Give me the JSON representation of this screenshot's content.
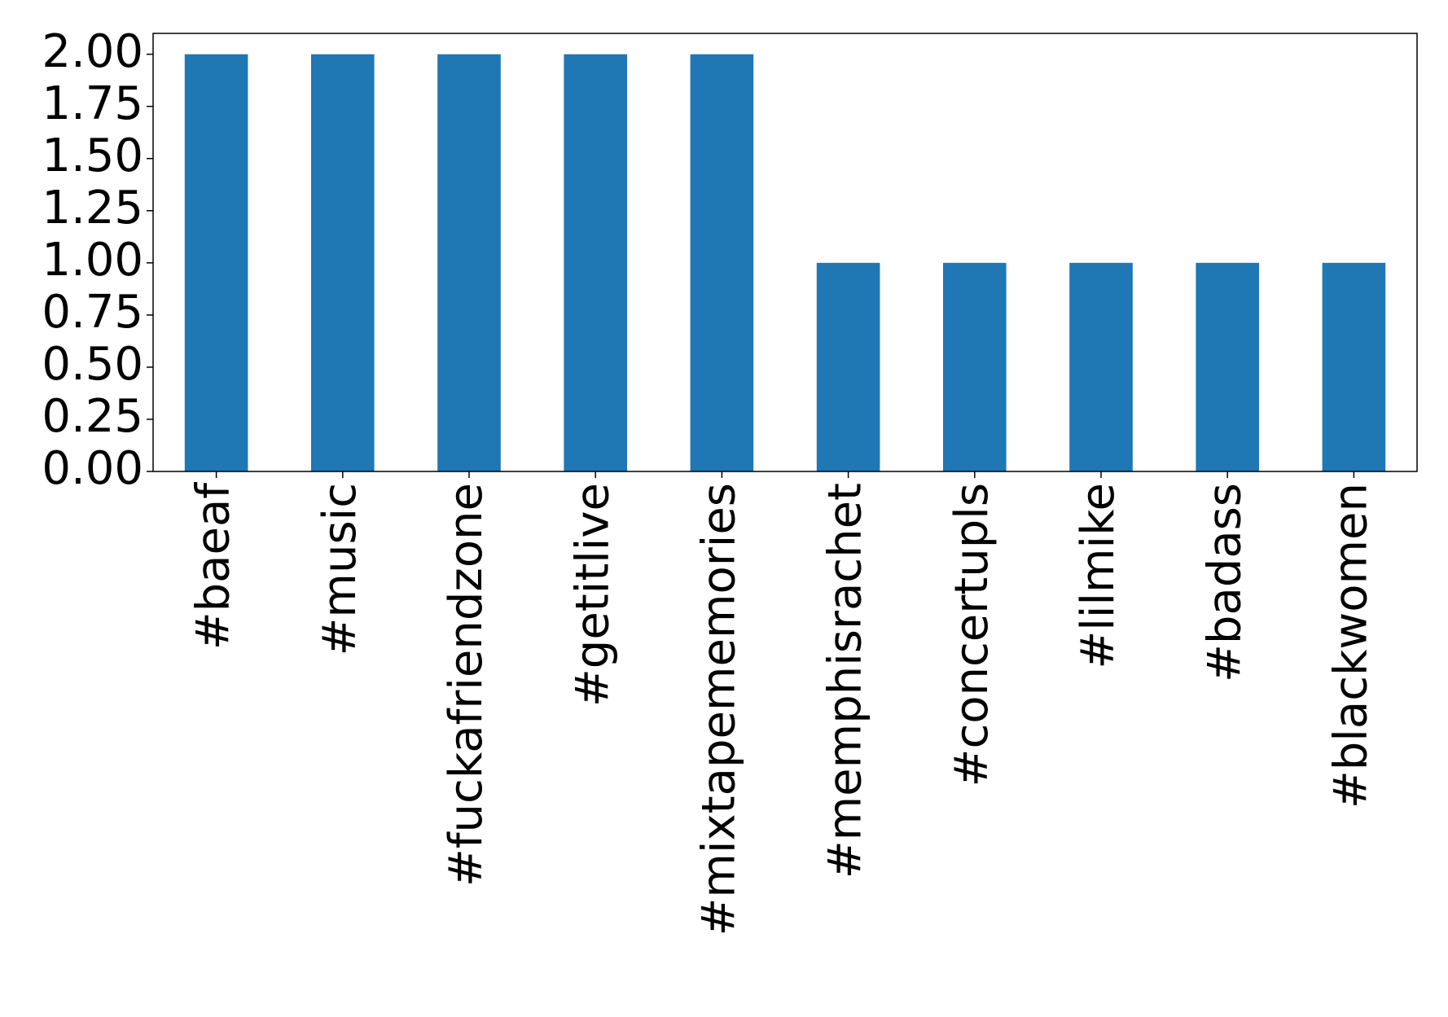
{
  "chart_data": {
    "type": "bar",
    "categories": [
      "#baeaf",
      "#music",
      "#fuckafriendzone",
      "#getitlive",
      "#mixtapememories",
      "#memphisrachet",
      "#concertupls",
      "#lilmike",
      "#badass",
      "#blackwomen"
    ],
    "values": [
      2,
      2,
      2,
      2,
      2,
      1,
      1,
      1,
      1,
      1
    ],
    "color": "#1f77b4",
    "ylim": [
      0,
      2.1
    ],
    "yticks": [
      {
        "value": 0,
        "label": "0.00"
      },
      {
        "value": 0.25,
        "label": "0.25"
      },
      {
        "value": 0.5,
        "label": "0.50"
      },
      {
        "value": 0.75,
        "label": "0.75"
      },
      {
        "value": 1,
        "label": "1.00"
      },
      {
        "value": 1.25,
        "label": "1.25"
      },
      {
        "value": 1.5,
        "label": "1.50"
      },
      {
        "value": 1.75,
        "label": "1.75"
      },
      {
        "value": 2,
        "label": "2.00"
      }
    ],
    "grid": false
  }
}
